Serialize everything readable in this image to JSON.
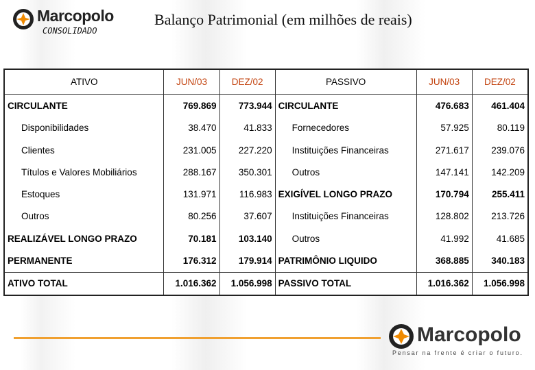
{
  "header": {
    "logo": "Marcopolo",
    "subtitle": "CONSOLIDADO",
    "title": "Balanço Patrimonial  (em milhões de reais)"
  },
  "table": {
    "columns": [
      "ATIVO",
      "JUN/03",
      "DEZ/02",
      "PASSIVO",
      "JUN/03",
      "DEZ/02"
    ],
    "rows": [
      [
        "CIRCULANTE",
        "769.869",
        "773.944",
        "CIRCULANTE",
        "476.683",
        "461.404"
      ],
      [
        "Disponibilidades",
        "38.470",
        "41.833",
        "Fornecedores",
        "57.925",
        "80.119"
      ],
      [
        "Clientes",
        "231.005",
        "227.220",
        "Instituições Financeiras",
        "271.617",
        "239.076"
      ],
      [
        "Títulos e Valores Mobiliários",
        "288.167",
        "350.301",
        "Outros",
        "147.141",
        "142.209"
      ],
      [
        "Estoques",
        "131.971",
        "116.983",
        "EXIGÍVEL LONGO PRAZO",
        "170.794",
        "255.411"
      ],
      [
        "Outros",
        "80.256",
        "37.607",
        "Instituições Financeiras",
        "128.802",
        "213.726"
      ],
      [
        "REALIZÁVEL LONGO PRAZO",
        "70.181",
        "103.140",
        "Outros",
        "41.992",
        "41.685"
      ],
      [
        "PERMANENTE",
        "176.312",
        "179.914",
        "PATRIMÔNIO LIQUIDO",
        "368.885",
        "340.183"
      ]
    ],
    "totals": [
      "ATIVO TOTAL",
      "1.016.362",
      "1.056.998",
      "PASSIVO TOTAL",
      "1.016.362",
      "1.056.998"
    ]
  },
  "footer": {
    "logo": "Marcopolo",
    "tagline": "Pensar na frente é criar o futuro."
  }
}
